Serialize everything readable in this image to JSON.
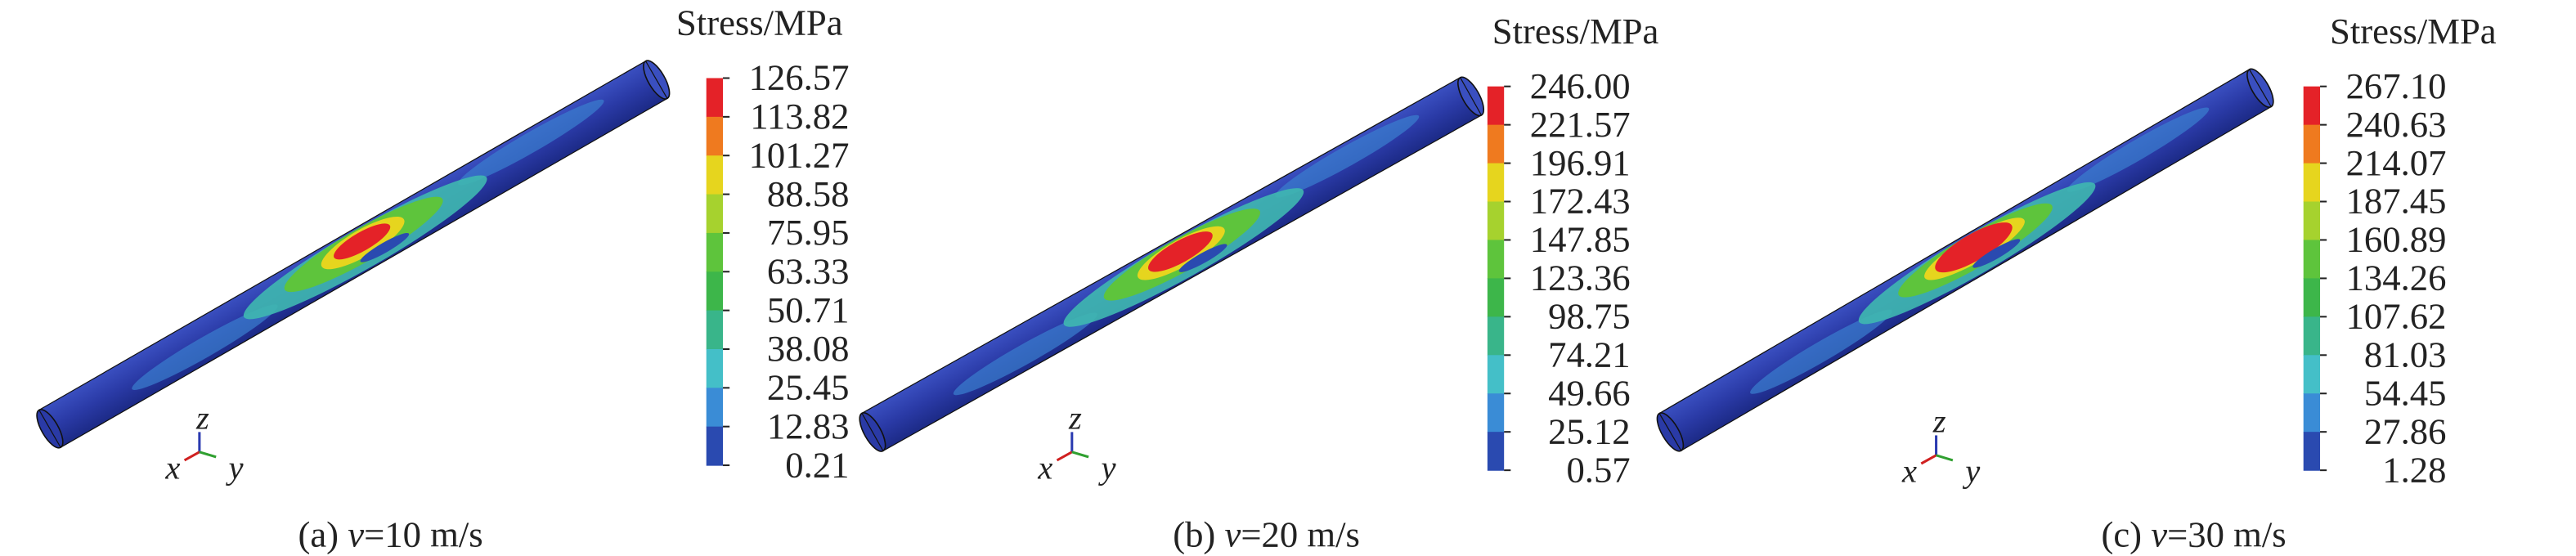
{
  "panels": [
    {
      "legend_title": "Stress/MPa",
      "legend_labels": [
        "126.57",
        "113.82",
        "101.27",
        "88.58",
        "75.95",
        "63.33",
        "50.71",
        "38.08",
        "25.45",
        "12.83",
        "0.21"
      ],
      "axes": {
        "x": "x",
        "y": "y",
        "z": "z"
      },
      "caption": {
        "label": "(a) ",
        "var": "v",
        "value": "=10 m/s"
      }
    },
    {
      "legend_title": "Stress/MPa",
      "legend_labels": [
        "246.00",
        "221.57",
        "196.91",
        "172.43",
        "147.85",
        "123.36",
        "98.75",
        "74.21",
        "49.66",
        "25.12",
        "0.57"
      ],
      "axes": {
        "x": "x",
        "y": "y",
        "z": "z"
      },
      "caption": {
        "label": "(b) ",
        "var": "v",
        "value": "=20 m/s"
      }
    },
    {
      "legend_title": "Stress/MPa",
      "legend_labels": [
        "267.10",
        "240.63",
        "214.07",
        "187.45",
        "160.89",
        "134.26",
        "107.62",
        "81.03",
        "54.45",
        "27.86",
        "1.28"
      ],
      "axes": {
        "x": "x",
        "y": "y",
        "z": "z"
      },
      "caption": {
        "label": "(c) ",
        "var": "v",
        "value": "=30 m/s"
      }
    }
  ]
}
